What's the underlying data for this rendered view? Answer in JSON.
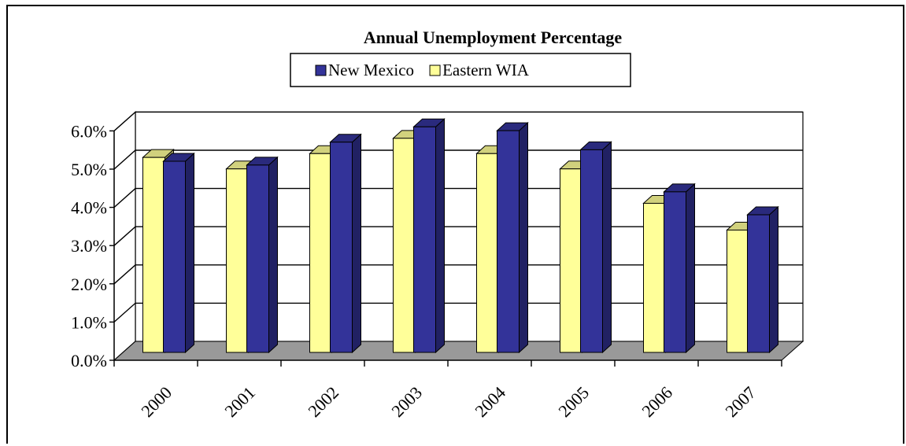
{
  "chart_data": {
    "type": "bar",
    "title": "Annual Unemployment Percentage",
    "categories": [
      "2000",
      "2001",
      "2002",
      "2003",
      "2004",
      "2005",
      "2006",
      "2007"
    ],
    "series": [
      {
        "name": "Eastern WIA",
        "values": [
          5.1,
          4.8,
          5.2,
          5.6,
          5.2,
          4.8,
          3.9,
          3.2
        ],
        "color": "#ffff99"
      },
      {
        "name": "New Mexico",
        "values": [
          5.0,
          4.9,
          5.5,
          5.9,
          5.8,
          5.3,
          4.2,
          3.6
        ],
        "color": "#333399"
      }
    ],
    "legend_order": [
      "New Mexico",
      "Eastern WIA"
    ],
    "legend_position": "top-center",
    "ylim": [
      0,
      6
    ],
    "y_ticks": [
      "0.0%",
      "1.0%",
      "2.0%",
      "3.0%",
      "4.0%",
      "5.0%",
      "6.0%"
    ],
    "gridlines": true,
    "style": "3d-clustered-column",
    "floor_color": "#999999"
  }
}
